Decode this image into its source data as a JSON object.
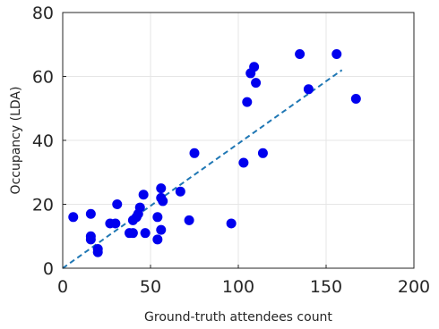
{
  "chart_data": {
    "type": "scatter",
    "title": "",
    "xlabel": "Ground-truth attendees count",
    "ylabel": "Occupancy (LDA)",
    "xlim": [
      0,
      200
    ],
    "ylim": [
      0,
      80
    ],
    "x_ticks": [
      "0",
      "50",
      "100",
      "150",
      "200"
    ],
    "y_ticks": [
      "0",
      "20",
      "40",
      "60",
      "80"
    ],
    "x_tick_values": [
      0,
      50,
      100,
      150,
      200
    ],
    "y_tick_values": [
      0,
      20,
      40,
      60,
      80
    ],
    "grid": true,
    "legend": "none",
    "points": [
      [
        6,
        16
      ],
      [
        16,
        17
      ],
      [
        16,
        10
      ],
      [
        16,
        9
      ],
      [
        20,
        6
      ],
      [
        20,
        5
      ],
      [
        27,
        14
      ],
      [
        30,
        14
      ],
      [
        31,
        20
      ],
      [
        38,
        11
      ],
      [
        40,
        15
      ],
      [
        40,
        11
      ],
      [
        42,
        16
      ],
      [
        43,
        17
      ],
      [
        44,
        19
      ],
      [
        46,
        23
      ],
      [
        47,
        11
      ],
      [
        54,
        16
      ],
      [
        54,
        9
      ],
      [
        56,
        25
      ],
      [
        56,
        22
      ],
      [
        56,
        12
      ],
      [
        57,
        21
      ],
      [
        67,
        24
      ],
      [
        72,
        15
      ],
      [
        75,
        36
      ],
      [
        96,
        14
      ],
      [
        103,
        33
      ],
      [
        105,
        52
      ],
      [
        107,
        61
      ],
      [
        109,
        63
      ],
      [
        110,
        58
      ],
      [
        114,
        36
      ],
      [
        135,
        67
      ],
      [
        140,
        56
      ],
      [
        156,
        67
      ],
      [
        167,
        53
      ]
    ],
    "fit_line": {
      "x": [
        0,
        159
      ],
      "y": [
        0,
        62
      ]
    },
    "colors": {
      "points": "#0000ee",
      "fit_line": "#1f77b4",
      "grid": "#e6e6e6",
      "axes": "#262626"
    }
  }
}
